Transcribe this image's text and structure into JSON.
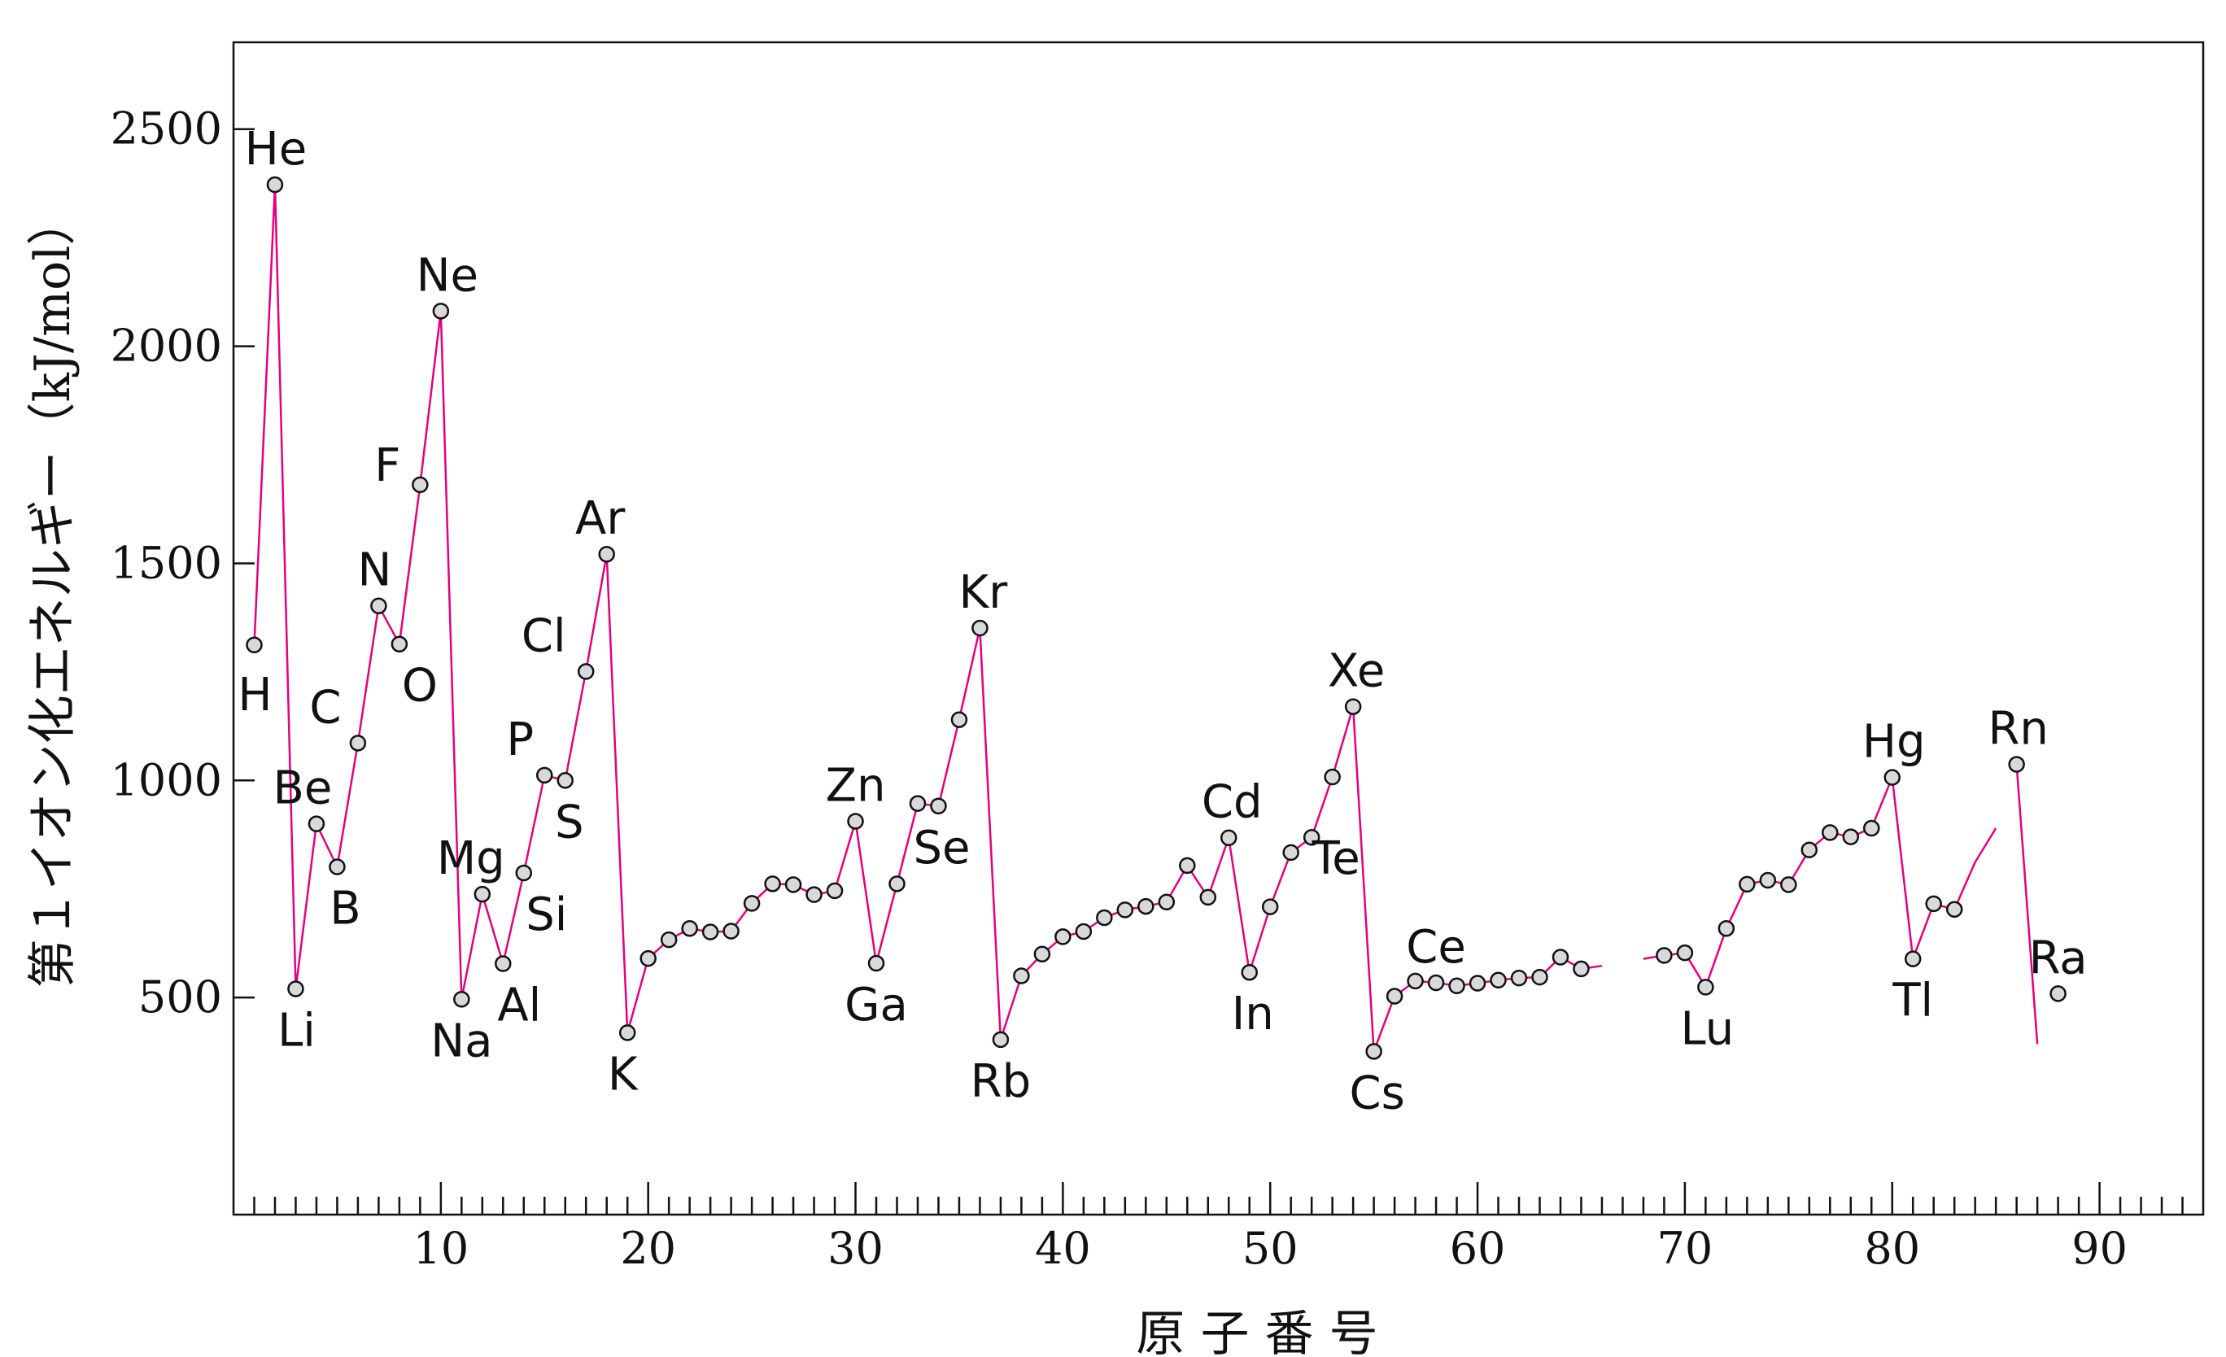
{
  "chart_data": {
    "type": "scatter",
    "title": "",
    "xlabel": "原 子 番 号",
    "ylabel": "第１イオン化エネルギー（kJ/mol）",
    "xlim": [
      0,
      95
    ],
    "ylim": [
      0,
      2700
    ],
    "x_ticks": [
      10,
      20,
      30,
      40,
      50,
      60,
      70,
      80,
      90
    ],
    "y_ticks": [
      500,
      1000,
      1500,
      2000,
      2500
    ],
    "grid": false,
    "legend": "none",
    "colors": {
      "line": "#e3007f",
      "marker_fill": "#d9d9d9",
      "marker_edge": "#111111"
    },
    "series": [
      {
        "segments": [
          [
            1,
            66
          ],
          [
            68,
            85
          ],
          [
            86,
            87
          ]
        ],
        "points": [
          {
            "x": 1,
            "y": 1312,
            "label": "H"
          },
          {
            "x": 2,
            "y": 2372,
            "label": "He"
          },
          {
            "x": 3,
            "y": 520,
            "label": "Li"
          },
          {
            "x": 4,
            "y": 900,
            "label": "Be"
          },
          {
            "x": 5,
            "y": 801,
            "label": "B"
          },
          {
            "x": 6,
            "y": 1086,
            "label": "C"
          },
          {
            "x": 7,
            "y": 1402,
            "label": "N"
          },
          {
            "x": 8,
            "y": 1314,
            "label": "O"
          },
          {
            "x": 9,
            "y": 1681,
            "label": "F"
          },
          {
            "x": 10,
            "y": 2081,
            "label": "Ne"
          },
          {
            "x": 11,
            "y": 496,
            "label": "Na"
          },
          {
            "x": 12,
            "y": 738,
            "label": "Mg"
          },
          {
            "x": 13,
            "y": 578,
            "label": "Al"
          },
          {
            "x": 14,
            "y": 787,
            "label": "Si"
          },
          {
            "x": 15,
            "y": 1012,
            "label": "P"
          },
          {
            "x": 16,
            "y": 1000,
            "label": "S"
          },
          {
            "x": 17,
            "y": 1251,
            "label": "Cl"
          },
          {
            "x": 18,
            "y": 1521,
            "label": "Ar"
          },
          {
            "x": 19,
            "y": 419,
            "label": "K"
          },
          {
            "x": 20,
            "y": 590
          },
          {
            "x": 21,
            "y": 633
          },
          {
            "x": 22,
            "y": 659
          },
          {
            "x": 23,
            "y": 651
          },
          {
            "x": 24,
            "y": 653
          },
          {
            "x": 25,
            "y": 717
          },
          {
            "x": 26,
            "y": 762
          },
          {
            "x": 27,
            "y": 760
          },
          {
            "x": 28,
            "y": 737
          },
          {
            "x": 29,
            "y": 746
          },
          {
            "x": 30,
            "y": 906,
            "label": "Zn"
          },
          {
            "x": 31,
            "y": 579,
            "label": "Ga"
          },
          {
            "x": 32,
            "y": 762
          },
          {
            "x": 33,
            "y": 947
          },
          {
            "x": 34,
            "y": 941,
            "label": "Se"
          },
          {
            "x": 35,
            "y": 1140
          },
          {
            "x": 36,
            "y": 1351,
            "label": "Kr"
          },
          {
            "x": 37,
            "y": 403,
            "label": "Rb"
          },
          {
            "x": 38,
            "y": 550
          },
          {
            "x": 39,
            "y": 600
          },
          {
            "x": 40,
            "y": 640
          },
          {
            "x": 41,
            "y": 652
          },
          {
            "x": 42,
            "y": 684
          },
          {
            "x": 43,
            "y": 702
          },
          {
            "x": 44,
            "y": 710
          },
          {
            "x": 45,
            "y": 720
          },
          {
            "x": 46,
            "y": 804
          },
          {
            "x": 47,
            "y": 731
          },
          {
            "x": 48,
            "y": 868,
            "label": "Cd"
          },
          {
            "x": 49,
            "y": 558,
            "label": "In"
          },
          {
            "x": 50,
            "y": 709
          },
          {
            "x": 51,
            "y": 834
          },
          {
            "x": 52,
            "y": 869,
            "label": "Te"
          },
          {
            "x": 53,
            "y": 1008
          },
          {
            "x": 54,
            "y": 1170,
            "label": "Xe"
          },
          {
            "x": 55,
            "y": 376,
            "label": "Cs"
          },
          {
            "x": 56,
            "y": 503
          },
          {
            "x": 57,
            "y": 538
          },
          {
            "x": 58,
            "y": 534,
            "label": "Ce"
          },
          {
            "x": 59,
            "y": 527
          },
          {
            "x": 60,
            "y": 533
          },
          {
            "x": 61,
            "y": 540
          },
          {
            "x": 62,
            "y": 545
          },
          {
            "x": 63,
            "y": 547
          },
          {
            "x": 64,
            "y": 593
          },
          {
            "x": 65,
            "y": 566
          },
          {
            "x": 66,
            "y": 573
          },
          {
            "x": 68,
            "y": 589
          },
          {
            "x": 69,
            "y": 597
          },
          {
            "x": 70,
            "y": 603
          },
          {
            "x": 71,
            "y": 524,
            "label": "Lu"
          },
          {
            "x": 72,
            "y": 659
          },
          {
            "x": 73,
            "y": 761
          },
          {
            "x": 74,
            "y": 770
          },
          {
            "x": 75,
            "y": 760
          },
          {
            "x": 76,
            "y": 840
          },
          {
            "x": 77,
            "y": 880
          },
          {
            "x": 78,
            "y": 870
          },
          {
            "x": 79,
            "y": 890
          },
          {
            "x": 80,
            "y": 1007,
            "label": "Hg"
          },
          {
            "x": 81,
            "y": 589,
            "label": "Tl"
          },
          {
            "x": 82,
            "y": 716
          },
          {
            "x": 83,
            "y": 703
          },
          {
            "x": 84,
            "y": 812
          },
          {
            "x": 85,
            "y": 890
          },
          {
            "x": 86,
            "y": 1037,
            "label": "Rn"
          },
          {
            "x": 87,
            "y": 393
          },
          {
            "x": 88,
            "y": 509,
            "label": "Ra"
          }
        ]
      }
    ]
  }
}
